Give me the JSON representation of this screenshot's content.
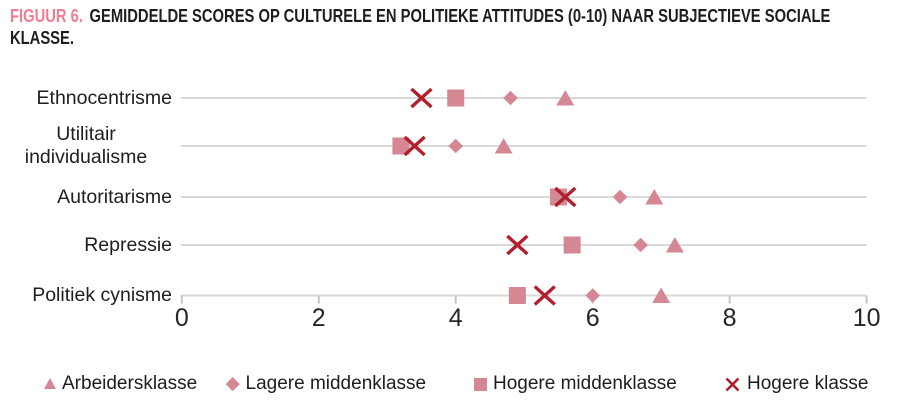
{
  "title": {
    "prefix": "FIGUUR 6.",
    "line1": "GEMIDDELDE SCORES OP CULTURELE EN POLITIEKE ATTITUDES (0-10) NAAR SUBJECTIEVE SOCIALE",
    "line2": "KLASSE."
  },
  "colors": {
    "marker_pink": "#d58794",
    "cross_red": "#b0202e",
    "title_pink": "#ef7e92",
    "grid_gray": "#d9d9d9",
    "tick_gray": "#c4c4c4",
    "text_dark": "#1e1e1e"
  },
  "chart_data": {
    "type": "scatter",
    "subtype": "horizontal-dot-plot",
    "title": "FIGUUR 6. GEMIDDELDE SCORES OP CULTURELE EN POLITIEKE ATTITUDES (0-10) NAAR SUBJECTIEVE SOCIALE KLASSE.",
    "categories": [
      "Ethnocentrisme",
      "Utilitair individualisme",
      "Autoritarisme",
      "Repressie",
      "Politiek cynisme"
    ],
    "series": [
      {
        "name": "Arbeidersklasse",
        "marker": "triangle",
        "values": [
          5.6,
          4.7,
          6.9,
          7.2,
          7.0
        ]
      },
      {
        "name": "Lagere middenklasse",
        "marker": "diamond",
        "values": [
          4.8,
          4.0,
          6.4,
          6.7,
          6.0
        ]
      },
      {
        "name": "Hogere middenklasse",
        "marker": "square",
        "values": [
          4.0,
          3.2,
          5.5,
          5.7,
          4.9
        ]
      },
      {
        "name": "Hogere klasse",
        "marker": "cross",
        "values": [
          3.5,
          3.4,
          5.6,
          4.9,
          5.3
        ]
      }
    ],
    "xlim": [
      0,
      10
    ],
    "x_ticks": [
      "0",
      "2",
      "4",
      "6",
      "8",
      "10"
    ],
    "grid": "one horizontal gray line per category, bottom line doubles as x-axis with outside ticks",
    "legend_position": "bottom"
  },
  "legend": {
    "items": [
      {
        "label": "Arbeidersklasse",
        "marker": "triangle"
      },
      {
        "label": "Lagere middenklasse",
        "marker": "diamond"
      },
      {
        "label": "Hogere middenklasse",
        "marker": "square"
      },
      {
        "label": "Hogere klasse",
        "marker": "cross"
      }
    ]
  }
}
